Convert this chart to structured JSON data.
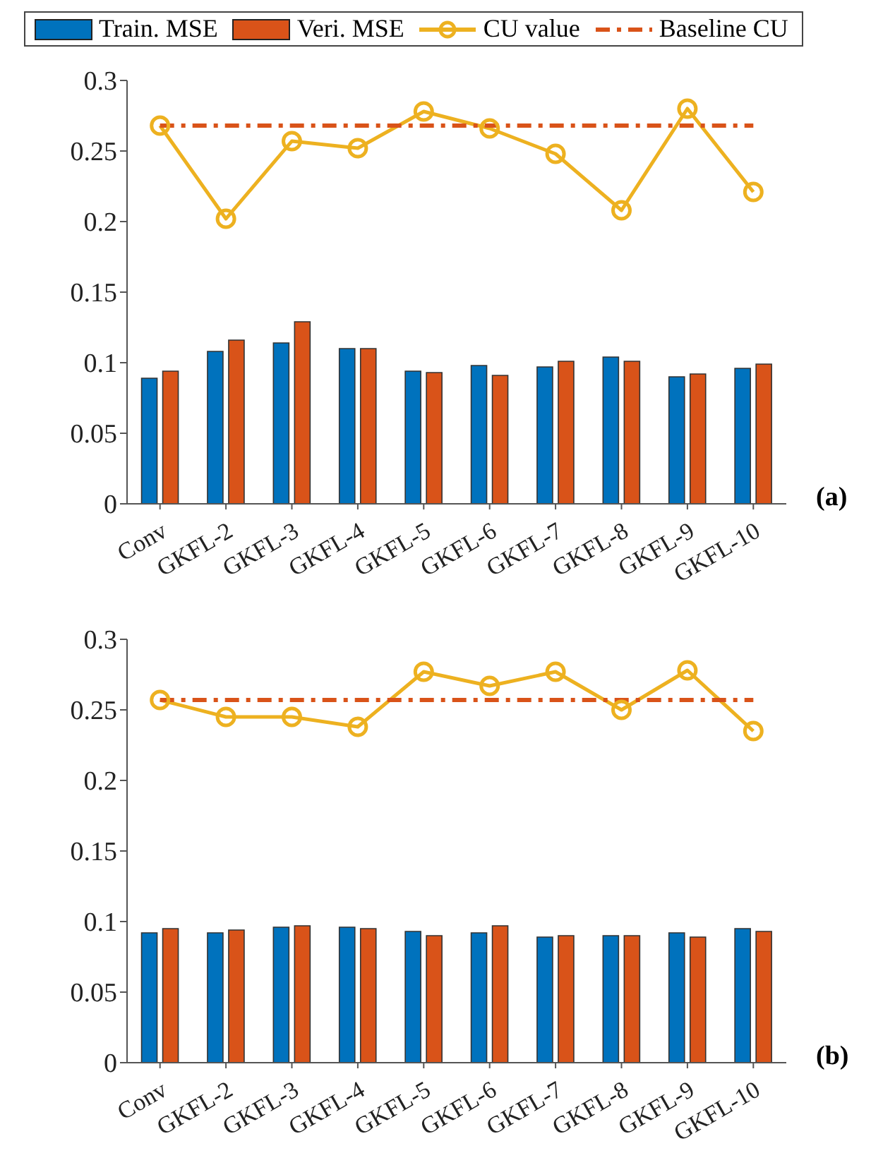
{
  "chart_data": [
    {
      "type": "bar",
      "categories": [
        "Conv",
        "GKFL-2",
        "GKFL-3",
        "GKFL-4",
        "GKFL-5",
        "GKFL-6",
        "GKFL-7",
        "GKFL-8",
        "GKFL-9",
        "GKFL-10"
      ],
      "series": [
        {
          "name": "Train. MSE",
          "color": "#0072bd",
          "values": [
            0.089,
            0.108,
            0.114,
            0.11,
            0.094,
            0.098,
            0.097,
            0.104,
            0.09,
            0.096
          ]
        },
        {
          "name": "Veri. MSE",
          "color": "#d95319",
          "values": [
            0.094,
            0.116,
            0.129,
            0.11,
            0.093,
            0.091,
            0.101,
            0.101,
            0.092,
            0.099
          ]
        },
        {
          "name": "CU value",
          "type": "line",
          "color": "#edb120",
          "marker": "circle",
          "line_style": "solid",
          "values": [
            0.268,
            0.202,
            0.257,
            0.252,
            0.278,
            0.266,
            0.248,
            0.208,
            0.28,
            0.221
          ]
        },
        {
          "name": "Baseline CU",
          "type": "line",
          "color": "#d95319",
          "marker": "none",
          "line_style": "dashed",
          "values": [
            0.268,
            0.268,
            0.268,
            0.268,
            0.268,
            0.268,
            0.268,
            0.268,
            0.268,
            0.268
          ]
        }
      ],
      "ylim": [
        0,
        0.3
      ],
      "yticks": [
        0,
        0.05,
        0.1,
        0.15,
        0.2,
        0.25,
        0.3
      ],
      "grid": false,
      "legend": "top",
      "annotations": [
        "(a)"
      ]
    },
    {
      "type": "bar",
      "categories": [
        "Conv",
        "GKFL-2",
        "GKFL-3",
        "GKFL-4",
        "GKFL-5",
        "GKFL-6",
        "GKFL-7",
        "GKFL-8",
        "GKFL-9",
        "GKFL-10"
      ],
      "series": [
        {
          "color": "#0072bd",
          "values": [
            0.092,
            0.092,
            0.096,
            0.096,
            0.093,
            0.092,
            0.089,
            0.09,
            0.092,
            0.095
          ]
        },
        {
          "color": "#d95319",
          "values": [
            0.095,
            0.094,
            0.097,
            0.095,
            0.09,
            0.097,
            0.09,
            0.09,
            0.089,
            0.093
          ]
        },
        {
          "type": "line",
          "color": "#edb120",
          "marker": "circle",
          "line_style": "solid",
          "values": [
            0.257,
            0.245,
            0.245,
            0.238,
            0.277,
            0.267,
            0.277,
            0.25,
            0.278,
            0.235
          ]
        },
        {
          "type": "line",
          "color": "#d95319",
          "marker": "none",
          "line_style": "dashed",
          "values": [
            0.257,
            0.257,
            0.257,
            0.257,
            0.257,
            0.257,
            0.257,
            0.257,
            0.257,
            0.257
          ]
        }
      ],
      "ylim": [
        0,
        0.3
      ],
      "yticks": [
        0,
        0.05,
        0.1,
        0.15,
        0.2,
        0.25,
        0.3
      ],
      "grid": false,
      "legend": false,
      "annotations": [
        "(b)"
      ]
    }
  ]
}
